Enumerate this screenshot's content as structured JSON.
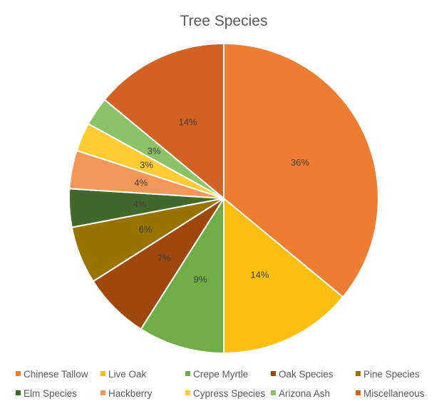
{
  "chart_data": {
    "type": "pie",
    "title": "Tree Species",
    "series": [
      {
        "name": "Chinese Tallow",
        "value": 36,
        "label": "36%",
        "color": "#ED7D31"
      },
      {
        "name": "Live Oak",
        "value": 14,
        "label": "14%",
        "color": "#FBBF10"
      },
      {
        "name": "Crepe Myrtle",
        "value": 9,
        "label": "9%",
        "color": "#70AD47"
      },
      {
        "name": "Oak Species",
        "value": 7,
        "label": "7%",
        "color": "#9E480E"
      },
      {
        "name": "Pine Species",
        "value": 6,
        "label": "6%",
        "color": "#997300"
      },
      {
        "name": "Elm Species",
        "value": 4,
        "label": "4%",
        "color": "#43682B"
      },
      {
        "name": "Hackberry",
        "value": 4,
        "label": "4%",
        "color": "#F1975A"
      },
      {
        "name": "Cypress Species",
        "value": 3,
        "label": "3%",
        "color": "#FFCD33"
      },
      {
        "name": "Arizona Ash",
        "value": 3,
        "label": "3%",
        "color": "#8CC168"
      },
      {
        "name": "Miscellaneous",
        "value": 14,
        "label": "14%",
        "color": "#D26224"
      }
    ],
    "legend_position": "bottom"
  }
}
